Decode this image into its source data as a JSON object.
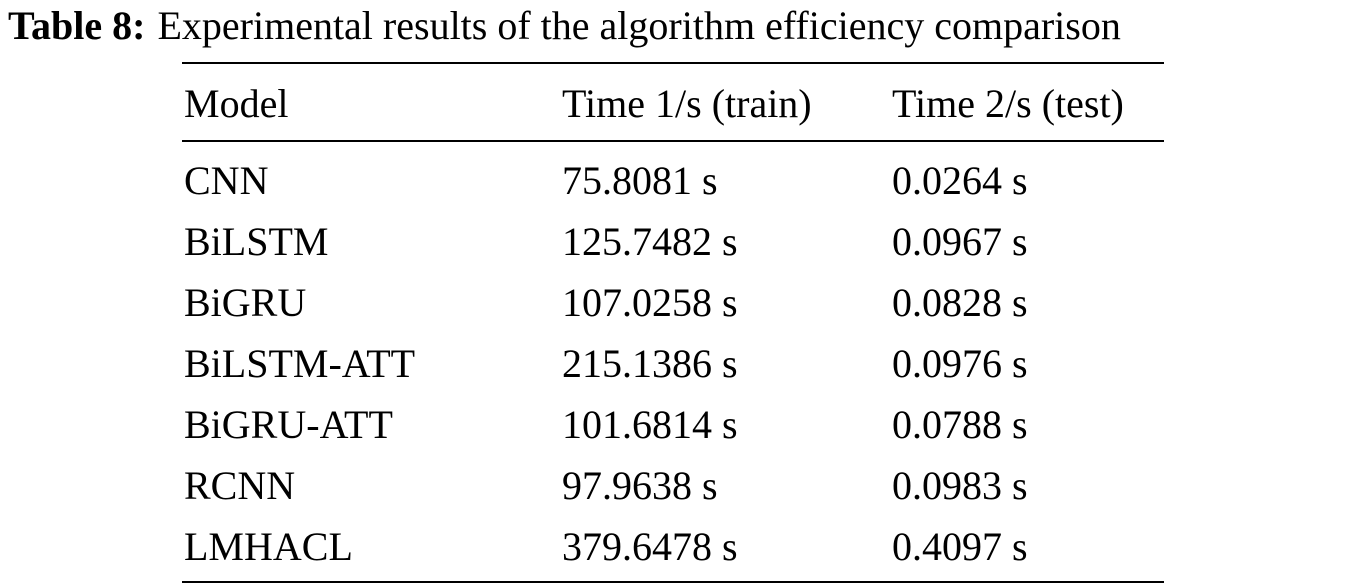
{
  "caption": {
    "label": "Table 8:",
    "text": "Experimental results of the algorithm efficiency comparison"
  },
  "table": {
    "headers": [
      "Model",
      "Time 1/s (train)",
      "Time 2/s (test)"
    ],
    "rows": [
      [
        "CNN",
        "75.8081 s",
        "0.0264 s"
      ],
      [
        "BiLSTM",
        "125.7482 s",
        "0.0967 s"
      ],
      [
        "BiGRU",
        "107.0258 s",
        "0.0828 s"
      ],
      [
        "BiLSTM-ATT",
        "215.1386 s",
        "0.0976 s"
      ],
      [
        "BiGRU-ATT",
        "101.6814 s",
        "0.0788 s"
      ],
      [
        "RCNN",
        "97.9638 s",
        "0.0983 s"
      ],
      [
        "LMHACL",
        "379.6478 s",
        "0.4097 s"
      ]
    ]
  }
}
